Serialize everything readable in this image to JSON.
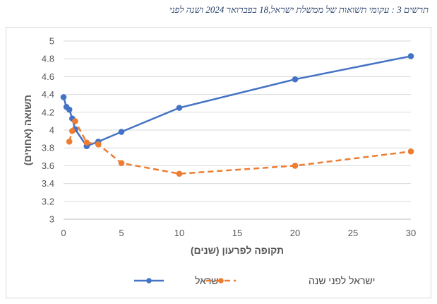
{
  "caption": "תרשים 3 : עקומי תשואות של ממשלת ישראל,18 בפברואר 2024 ושנה לפני",
  "chart_data": {
    "type": "line",
    "title": "",
    "xlabel": "תקופה לפרעון (שנים)",
    "ylabel": "תשואה (אחוזים)",
    "xlim": [
      0,
      30
    ],
    "ylim": [
      3,
      5
    ],
    "x_ticks": [
      0,
      5,
      10,
      15,
      20,
      25,
      30
    ],
    "y_ticks": [
      3,
      3.2,
      3.4,
      3.6,
      3.8,
      4,
      4.2,
      4.4,
      4.6,
      4.8,
      5
    ],
    "grid": "horizontal",
    "legend_position": "bottom",
    "series": [
      {
        "name": "ישראל",
        "color": "#4472c4",
        "dash": "solid",
        "marker": "circle",
        "points": [
          [
            0,
            4.37
          ],
          [
            0.25,
            4.26
          ],
          [
            0.5,
            4.23
          ],
          [
            0.75,
            4.13
          ],
          [
            1,
            4.01
          ],
          [
            2,
            3.82
          ],
          [
            3,
            3.87
          ],
          [
            5,
            3.98
          ],
          [
            10,
            4.25
          ],
          [
            20,
            4.57
          ],
          [
            30,
            4.83
          ]
        ]
      },
      {
        "name": "ישראל לפני שנה",
        "color": "#ed7d31",
        "dash": "dashed",
        "marker": "circle",
        "points": [
          [
            0.5,
            3.87
          ],
          [
            0.75,
            3.99
          ],
          [
            1,
            4.1
          ],
          [
            2,
            3.86
          ],
          [
            3,
            3.84
          ],
          [
            5,
            3.63
          ],
          [
            10,
            3.51
          ],
          [
            20,
            3.6
          ],
          [
            30,
            3.76
          ]
        ]
      }
    ]
  }
}
